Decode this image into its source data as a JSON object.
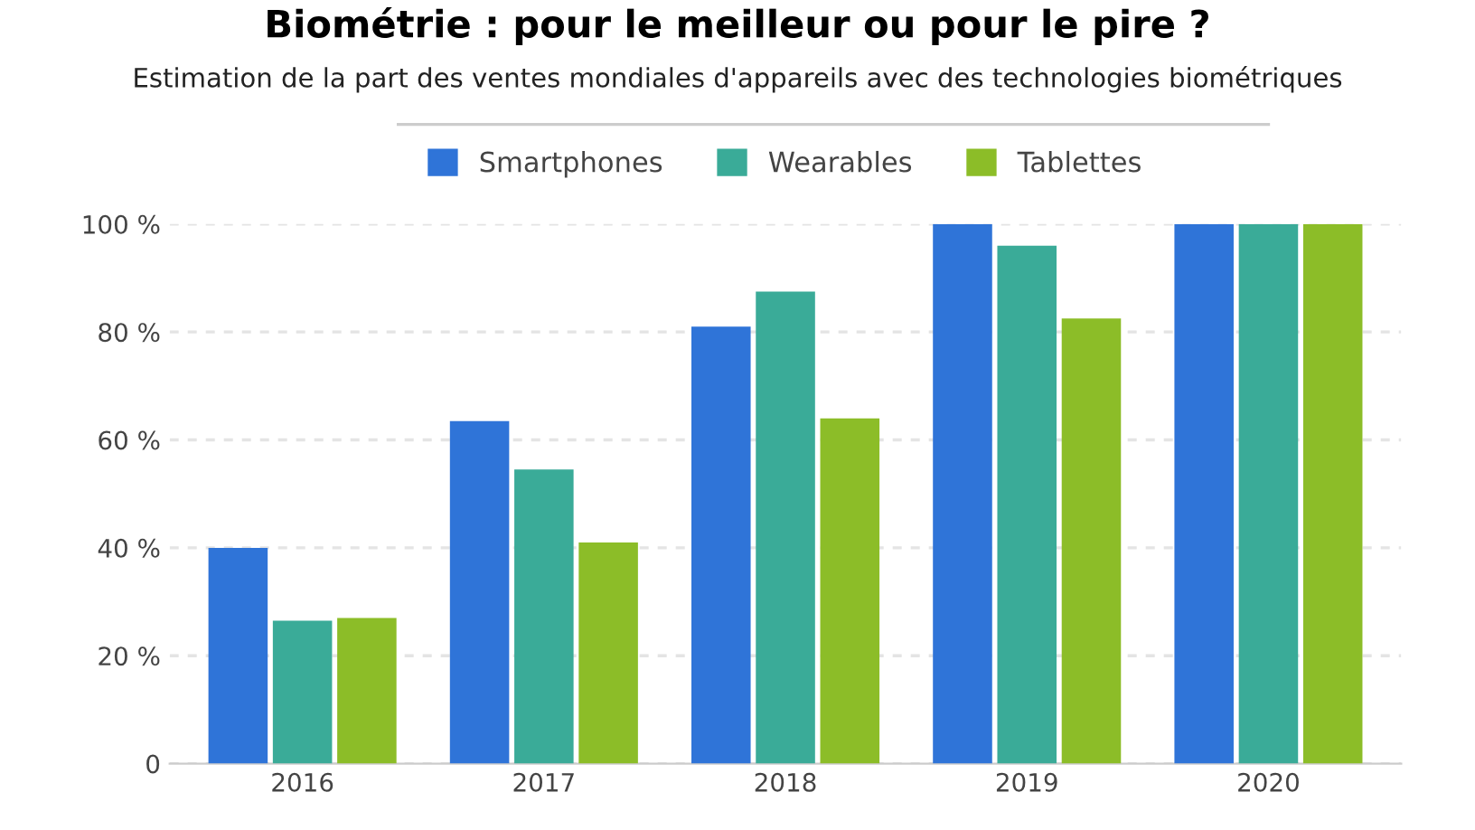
{
  "chart_data": {
    "type": "bar",
    "title": "Biométrie : pour le meilleur ou pour le pire ?",
    "subtitle": "Estimation de la part des ventes mondiales d'appareils avec des technologies biométriques",
    "categories": [
      "2016",
      "2017",
      "2018",
      "2019",
      "2020"
    ],
    "series": [
      {
        "name": "Smartphones",
        "color": "#2f74d8",
        "values": [
          40,
          63.5,
          81,
          100,
          100
        ]
      },
      {
        "name": "Wearables",
        "color": "#3aab98",
        "values": [
          26.5,
          54.5,
          87.5,
          96,
          100
        ]
      },
      {
        "name": "Tablettes",
        "color": "#8cbd28",
        "values": [
          27,
          41,
          64,
          82.5,
          100
        ]
      }
    ],
    "ylim": [
      0,
      100
    ],
    "yticks": [
      {
        "value": 0,
        "label": "0"
      },
      {
        "value": 20,
        "label": "20 %"
      },
      {
        "value": 40,
        "label": "40 %"
      },
      {
        "value": 60,
        "label": "60 %"
      },
      {
        "value": 80,
        "label": "80 %"
      },
      {
        "value": 100,
        "label": "100 %"
      }
    ],
    "grid": "y",
    "legend": "top"
  }
}
